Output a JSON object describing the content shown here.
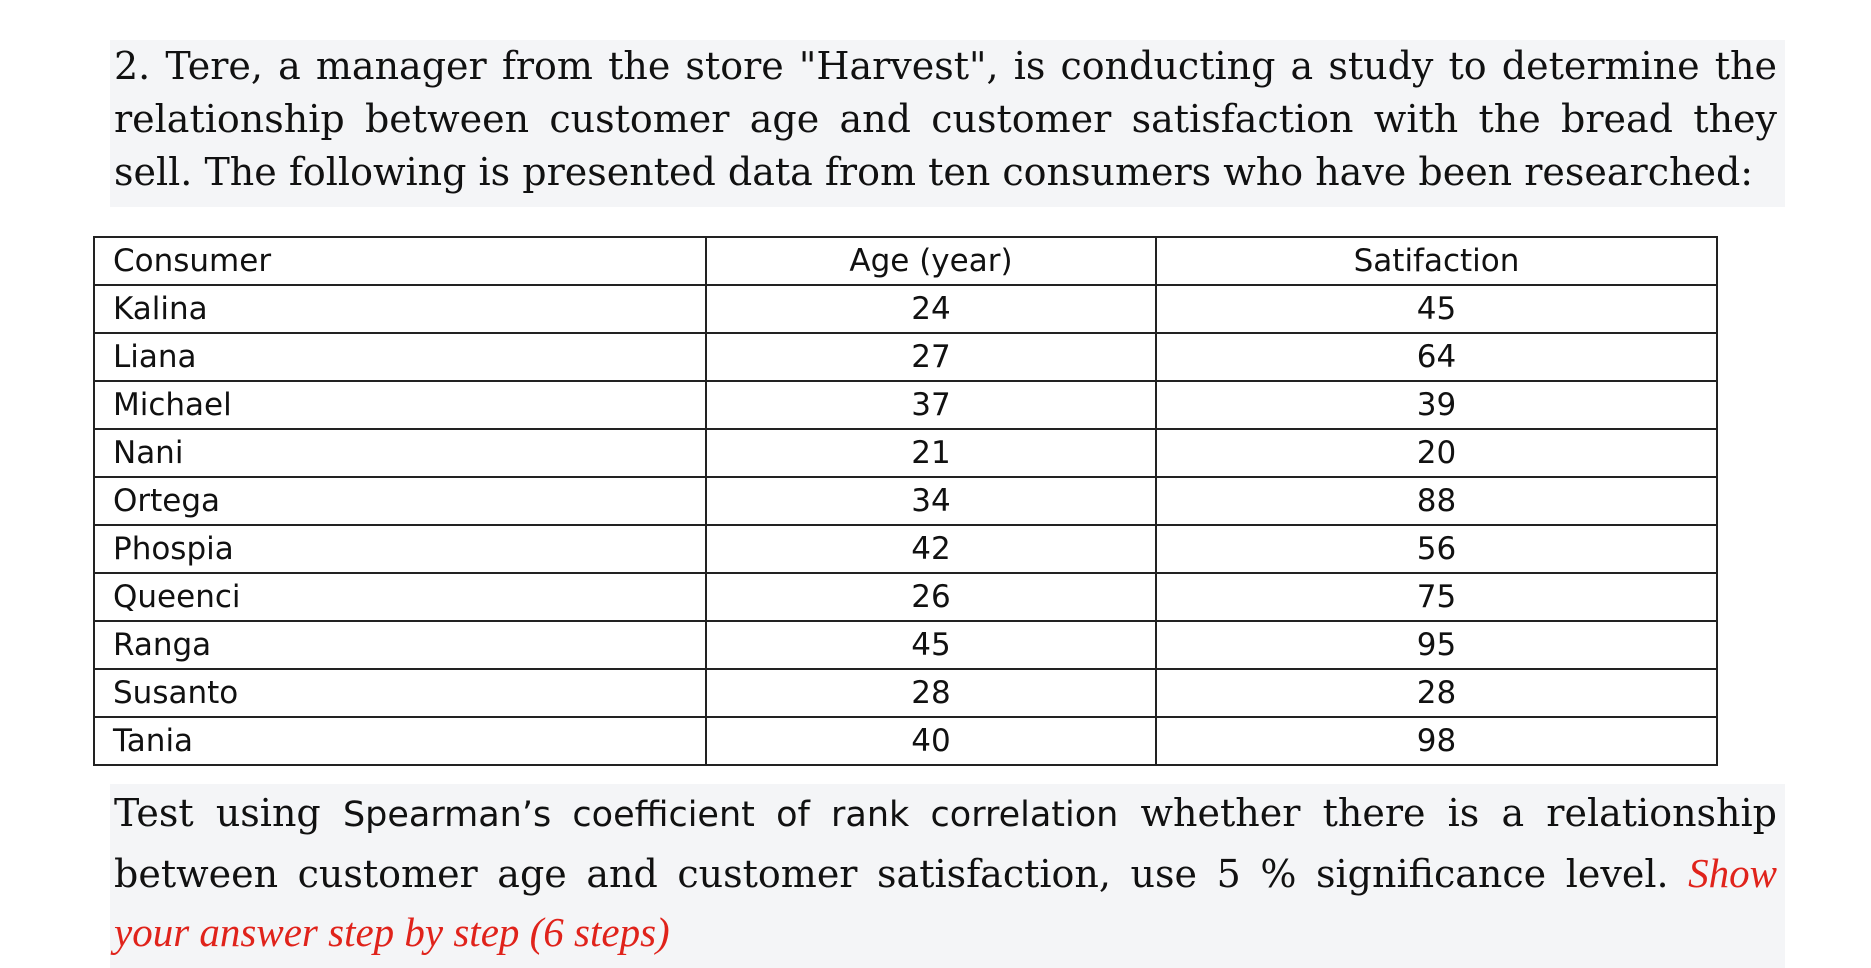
{
  "intro": {
    "text": "2. Tere, a manager from the store \"Harvest\", is conducting a study to determine the relationship between customer age and customer satisfaction with the bread they sell. The following is presented data from ten consumers who have been researched:"
  },
  "table": {
    "headers": [
      "Consumer",
      "Age (year)",
      "Satifaction"
    ],
    "rows": [
      [
        "Kalina",
        "24",
        "45"
      ],
      [
        "Liana",
        "27",
        "64"
      ],
      [
        "Michael",
        "37",
        "39"
      ],
      [
        "Nani",
        "21",
        "20"
      ],
      [
        "Ortega",
        "34",
        "88"
      ],
      [
        "Phospia",
        "42",
        "56"
      ],
      [
        "Queenci",
        "26",
        "75"
      ],
      [
        "Ranga",
        "45",
        "95"
      ],
      [
        "Susanto",
        "28",
        "28"
      ],
      [
        "Tania",
        "40",
        "98"
      ]
    ]
  },
  "question": {
    "prefix": "Test using ",
    "method": "Spearman’s coefficient of rank correlation",
    "rest": " whether there is a relationship between customer age and customer satisfaction, use 5 % significance level. ",
    "hint": "Show your answer step by step (6 steps)",
    "hint_color": "#e0231b"
  }
}
